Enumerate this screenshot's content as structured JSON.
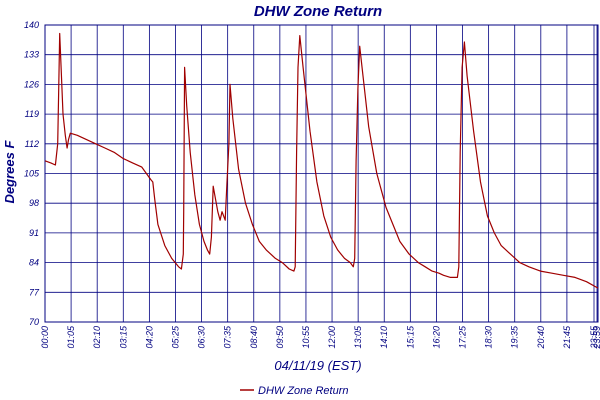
{
  "chart_data": {
    "type": "line",
    "title": "DHW Zone Return",
    "xlabel": "04/11/19 (EST)",
    "ylabel": "Degrees F",
    "x_ticks": [
      "00:00",
      "01:05",
      "02:10",
      "03:15",
      "04:20",
      "05:25",
      "06:30",
      "07:35",
      "08:40",
      "09:50",
      "10:55",
      "12:00",
      "13:05",
      "14:10",
      "15:15",
      "16:20",
      "17:25",
      "18:30",
      "19:35",
      "20:40",
      "21:45",
      "23:55",
      "23:59"
    ],
    "y_ticks": [
      70,
      77,
      84,
      91,
      98,
      105,
      112,
      119,
      126,
      133,
      140
    ],
    "ylim": [
      70,
      140
    ],
    "xlim_hours": [
      0,
      24
    ],
    "grid": true,
    "legend": "bottom-center",
    "series": [
      {
        "name": "DHW Zone Return",
        "color": "#a00000",
        "points": [
          [
            0.0,
            108.0
          ],
          [
            0.25,
            107.5
          ],
          [
            0.45,
            107.0
          ],
          [
            0.55,
            112
          ],
          [
            0.6,
            126
          ],
          [
            0.64,
            138
          ],
          [
            0.7,
            130
          ],
          [
            0.78,
            119
          ],
          [
            0.88,
            114
          ],
          [
            0.96,
            111
          ],
          [
            1.02,
            113
          ],
          [
            1.1,
            114.5
          ],
          [
            1.4,
            114
          ],
          [
            1.8,
            113
          ],
          [
            2.2,
            112
          ],
          [
            2.6,
            111
          ],
          [
            3.0,
            110
          ],
          [
            3.4,
            108.5
          ],
          [
            3.8,
            107.5
          ],
          [
            4.2,
            106.5
          ],
          [
            4.4,
            105
          ],
          [
            4.6,
            103.5
          ],
          [
            4.68,
            103
          ],
          [
            4.76,
            99
          ],
          [
            4.9,
            93
          ],
          [
            5.2,
            88
          ],
          [
            5.5,
            85
          ],
          [
            5.8,
            83
          ],
          [
            5.92,
            82.5
          ],
          [
            6.0,
            86
          ],
          [
            6.02,
            96
          ],
          [
            6.06,
            130
          ],
          [
            6.15,
            121
          ],
          [
            6.3,
            110
          ],
          [
            6.5,
            100
          ],
          [
            6.7,
            93
          ],
          [
            6.9,
            89
          ],
          [
            7.05,
            87
          ],
          [
            7.15,
            86
          ],
          [
            7.22,
            90
          ],
          [
            7.3,
            102
          ],
          [
            7.4,
            99
          ],
          [
            7.5,
            96
          ],
          [
            7.6,
            94
          ],
          [
            7.68,
            96
          ],
          [
            7.75,
            95
          ],
          [
            7.82,
            94
          ],
          [
            7.9,
            103
          ],
          [
            7.98,
            112
          ],
          [
            8.03,
            126
          ],
          [
            8.15,
            118
          ],
          [
            8.4,
            106
          ],
          [
            8.7,
            98
          ],
          [
            9.0,
            93
          ],
          [
            9.3,
            89
          ],
          [
            9.6,
            87
          ],
          [
            10.0,
            85
          ],
          [
            10.3,
            84
          ],
          [
            10.6,
            82.5
          ],
          [
            10.8,
            82
          ],
          [
            10.86,
            83
          ],
          [
            10.92,
            110
          ],
          [
            10.98,
            130
          ],
          [
            11.06,
            137.5
          ],
          [
            11.2,
            130
          ],
          [
            11.5,
            115
          ],
          [
            11.8,
            103
          ],
          [
            12.1,
            95
          ],
          [
            12.4,
            90
          ],
          [
            12.7,
            87
          ],
          [
            13.0,
            85
          ],
          [
            13.25,
            84
          ],
          [
            13.38,
            83
          ],
          [
            13.44,
            85
          ],
          [
            13.5,
            108
          ],
          [
            13.58,
            125
          ],
          [
            13.66,
            135
          ],
          [
            13.8,
            128
          ],
          [
            14.05,
            116
          ],
          [
            14.4,
            105
          ],
          [
            14.8,
            97
          ],
          [
            15.1,
            93
          ],
          [
            15.4,
            89
          ],
          [
            15.8,
            86
          ],
          [
            16.2,
            84
          ],
          [
            16.5,
            83
          ],
          [
            16.8,
            82
          ],
          [
            17.1,
            81.5
          ],
          [
            17.3,
            81
          ],
          [
            17.6,
            80.5
          ],
          [
            17.9,
            80.5
          ],
          [
            17.96,
            83
          ],
          [
            18.02,
            110
          ],
          [
            18.1,
            130
          ],
          [
            18.2,
            136
          ],
          [
            18.32,
            128
          ],
          [
            18.6,
            115
          ],
          [
            18.9,
            103
          ],
          [
            19.2,
            95
          ],
          [
            19.5,
            91
          ],
          [
            19.8,
            88
          ],
          [
            20.2,
            86
          ],
          [
            20.6,
            84
          ],
          [
            21.0,
            83
          ],
          [
            21.5,
            82
          ],
          [
            22.0,
            81.5
          ],
          [
            22.5,
            81
          ],
          [
            23.0,
            80.5
          ],
          [
            23.5,
            79.5
          ],
          [
            24.0,
            78
          ]
        ]
      }
    ]
  }
}
